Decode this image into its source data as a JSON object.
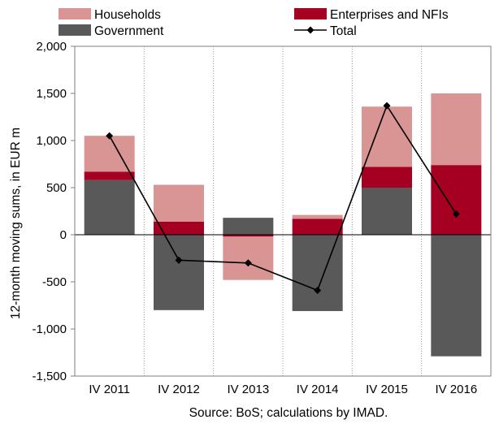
{
  "chart_data": {
    "type": "bar",
    "stacked": true,
    "categories": [
      "IV 2011",
      "IV 2012",
      "IV 2013",
      "IV 2014",
      "IV 2015",
      "IV 2016"
    ],
    "series": [
      {
        "name": "Government",
        "kind": "bar",
        "color": "#595959",
        "values": [
          580,
          -800,
          180,
          -810,
          500,
          -1290
        ]
      },
      {
        "name": "Enterprises and NFIs",
        "kind": "bar",
        "color": "#a50021",
        "values": [
          90,
          140,
          -20,
          170,
          220,
          740
        ]
      },
      {
        "name": "Households",
        "kind": "bar",
        "color": "#d99594",
        "values": [
          380,
          390,
          -460,
          40,
          640,
          760
        ]
      },
      {
        "name": "Total",
        "kind": "line",
        "color": "#000000",
        "values": [
          1050,
          -270,
          -300,
          -590,
          1370,
          220
        ]
      }
    ],
    "ylabel": "12-month moving sums, in EUR m",
    "ylim": [
      -1500,
      2000
    ],
    "yticks": [
      -1500,
      -1000,
      -500,
      0,
      500,
      1000,
      1500,
      2000
    ],
    "ytick_labels": [
      "-1,500",
      "-1,000",
      "-500",
      "0",
      "500",
      "1,000",
      "1,500",
      "2,000"
    ],
    "grid": "vertical-dotted",
    "legend_position": "top",
    "source": "Source: BoS; calculations by IMAD."
  }
}
